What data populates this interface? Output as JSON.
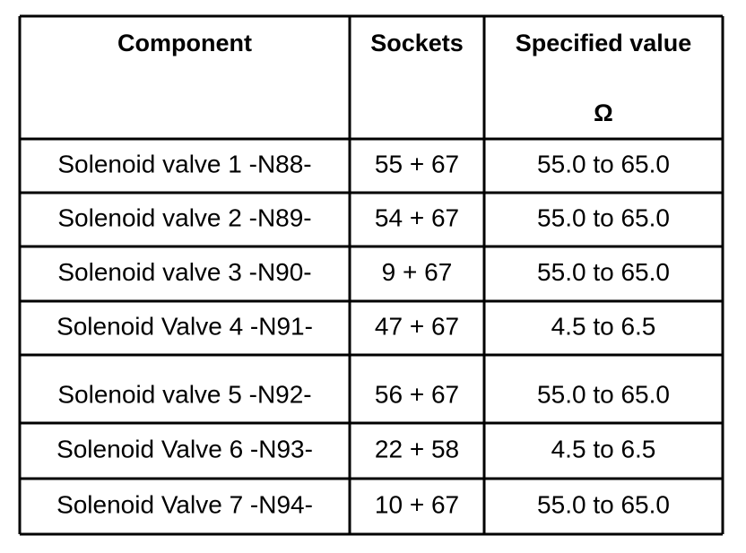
{
  "table": {
    "header": [
      "Component",
      "Sockets",
      "Specified value"
    ],
    "unit": "Ω",
    "rows": [
      [
        "Solenoid valve 1 -N88-",
        "55 + 67",
        "55.0 to 65.0"
      ],
      [
        "Solenoid valve 2 -N89-",
        "54 + 67",
        "55.0 to 65.0"
      ],
      [
        "Solenoid valve 3 -N90-",
        "9 + 67",
        "55.0 to 65.0"
      ],
      [
        "Solenoid Valve 4 -N91-",
        "47 + 67",
        "4.5 to 6.5"
      ],
      [
        "Solenoid valve 5 -N92-",
        "56 + 67",
        "55.0 to 65.0"
      ],
      [
        "Solenoid Valve 6 -N93-",
        "22 + 58",
        "4.5 to 6.5"
      ],
      [
        "Solenoid Valve 7 -N94-",
        "10 + 67",
        "55.0 to 65.0"
      ]
    ]
  }
}
